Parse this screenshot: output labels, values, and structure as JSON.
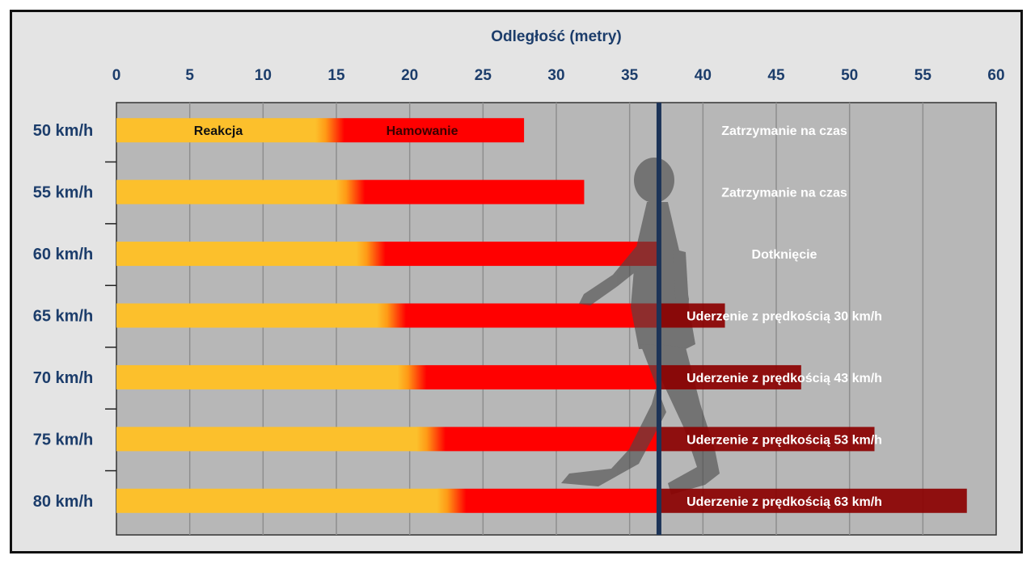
{
  "chart_data": {
    "type": "bar",
    "title": "",
    "xlabel": "Odległość (metry)",
    "ylabel": "",
    "xlim": [
      0,
      60
    ],
    "x_ticks": [
      "0",
      "5",
      "10",
      "15",
      "20",
      "25",
      "30",
      "35",
      "40",
      "45",
      "50",
      "55",
      "60"
    ],
    "grid": true,
    "stop_line_x": 37,
    "categories": [
      "50 km/h",
      "55 km/h",
      "60 km/h",
      "65 km/h",
      "70 km/h",
      "75 km/h",
      "80 km/h"
    ],
    "series": [
      {
        "name": "Reakcja",
        "values": [
          13.9,
          15.3,
          16.7,
          18.1,
          19.5,
          20.8,
          22.2
        ]
      },
      {
        "name": "Hamowanie",
        "values": [
          13.9,
          16.6,
          20.3,
          23.4,
          27.2,
          30.9,
          35.8
        ]
      }
    ],
    "totals": [
      27.8,
      31.9,
      37.0,
      41.5,
      46.7,
      51.7,
      58.0
    ],
    "segment_labels": {
      "reaction": "Reakcja",
      "braking": "Hamowanie"
    },
    "outcomes": [
      "Zatrzymanie na czas",
      "Zatrzymanie na czas",
      "Dotknięcie",
      "Uderzenie z prędkością 30 km/h",
      "Uderzenie z prędkością 43 km/h",
      "Uderzenie z prędkością 53 km/h",
      "Uderzenie z prędkością 63 km/h"
    ],
    "colors": {
      "reaction": "#fcc02c",
      "braking": "#ff0000",
      "impact": "#8b0000",
      "plot_bg": "#b7b7b7",
      "grid": "#8e8e8e",
      "stop_line": "#1c3357",
      "axis_text": "#1c3d6b",
      "pedestrian": "#4a4a4a"
    },
    "pedestrian": "pedestrian-silhouette"
  }
}
